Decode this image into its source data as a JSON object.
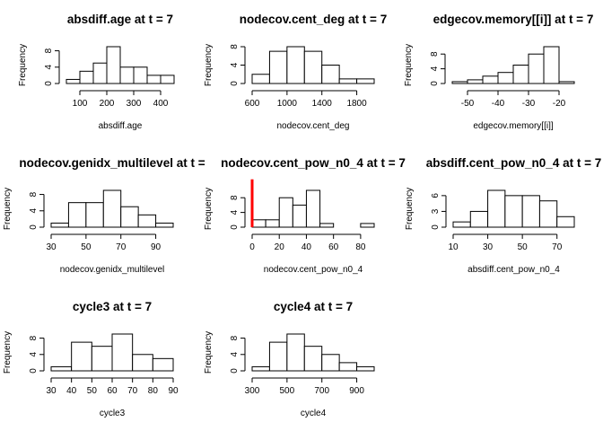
{
  "chart_data": [
    {
      "type": "bar",
      "title": "absdiff.age at t = 7",
      "xlabel": "absdiff.age",
      "ylabel": "Frequency",
      "bins": [
        [
          50,
          100
        ],
        [
          100,
          150
        ],
        [
          150,
          200
        ],
        [
          200,
          250
        ],
        [
          250,
          300
        ],
        [
          300,
          350
        ],
        [
          350,
          400
        ],
        [
          400,
          450
        ]
      ],
      "values": [
        1,
        3,
        5,
        9,
        4,
        4,
        2,
        2
      ],
      "xlim": [
        50,
        450
      ],
      "xticks": [
        100,
        200,
        300,
        400
      ],
      "ylim": [
        0,
        9
      ],
      "yticks": [
        0,
        4,
        8
      ]
    },
    {
      "type": "bar",
      "title": "nodecov.cent_deg at t = 7",
      "xlabel": "nodecov.cent_deg",
      "ylabel": "Frequency",
      "bins": [
        [
          600,
          800
        ],
        [
          800,
          1000
        ],
        [
          1000,
          1200
        ],
        [
          1200,
          1400
        ],
        [
          1400,
          1600
        ],
        [
          1600,
          1800
        ],
        [
          1800,
          2000
        ]
      ],
      "values": [
        2,
        7,
        8,
        7,
        4,
        1,
        1
      ],
      "xlim": [
        600,
        2000
      ],
      "xticks": [
        600,
        1000,
        1400,
        1800
      ],
      "ylim": [
        0,
        8
      ],
      "yticks": [
        0,
        4,
        8
      ]
    },
    {
      "type": "bar",
      "title": "edgecov.memory[[i]] at t = 7",
      "xlabel": "edgecov.memory[[i]]",
      "ylabel": "Frequency",
      "bins": [
        [
          -55,
          -50
        ],
        [
          -50,
          -45
        ],
        [
          -45,
          -40
        ],
        [
          -40,
          -35
        ],
        [
          -35,
          -30
        ],
        [
          -30,
          -25
        ],
        [
          -25,
          -20
        ],
        [
          -20,
          -15
        ]
      ],
      "values": [
        0.5,
        1,
        2,
        3,
        5,
        8,
        10,
        0.5
      ],
      "xlim": [
        -55,
        -15
      ],
      "xticks": [
        -50,
        -40,
        -30,
        -20
      ],
      "ylim": [
        0,
        10
      ],
      "yticks": [
        0,
        4,
        8
      ]
    },
    {
      "type": "bar",
      "title": "nodecov.genidx_multilevel at t =",
      "xlabel": "nodecov.genidx_multilevel",
      "ylabel": "Frequency",
      "bins": [
        [
          30,
          40
        ],
        [
          40,
          50
        ],
        [
          50,
          60
        ],
        [
          60,
          70
        ],
        [
          70,
          80
        ],
        [
          80,
          90
        ],
        [
          90,
          100
        ]
      ],
      "values": [
        1,
        6,
        6,
        9,
        5,
        3,
        1
      ],
      "xlim": [
        30,
        100
      ],
      "xticks": [
        30,
        50,
        70,
        90
      ],
      "ylim": [
        0,
        9
      ],
      "yticks": [
        0,
        4,
        8
      ]
    },
    {
      "type": "bar",
      "title": "nodecov.cent_pow_n0_4 at t = 7",
      "xlabel": "nodecov.cent_pow_n0_4",
      "ylabel": "Frequency",
      "bins": [
        [
          0,
          10
        ],
        [
          10,
          20
        ],
        [
          20,
          30
        ],
        [
          30,
          40
        ],
        [
          40,
          50
        ],
        [
          50,
          60
        ],
        [
          60,
          70
        ],
        [
          70,
          80
        ],
        [
          80,
          90
        ]
      ],
      "values": [
        2,
        2,
        8,
        6,
        10,
        1,
        0,
        0,
        1
      ],
      "xlim": [
        0,
        90
      ],
      "xticks": [
        0,
        20,
        40,
        60,
        80
      ],
      "ylim": [
        0,
        10
      ],
      "yticks": [
        0,
        4,
        8
      ],
      "refline": 0,
      "refline_color": "#ff0000"
    },
    {
      "type": "bar",
      "title": "absdiff.cent_pow_n0_4 at t = 7",
      "xlabel": "absdiff.cent_pow_n0_4",
      "ylabel": "Frequency",
      "bins": [
        [
          10,
          20
        ],
        [
          20,
          30
        ],
        [
          30,
          40
        ],
        [
          40,
          50
        ],
        [
          50,
          60
        ],
        [
          60,
          70
        ],
        [
          70,
          80
        ]
      ],
      "values": [
        1,
        3,
        7,
        6,
        6,
        5,
        2
      ],
      "xlim": [
        10,
        80
      ],
      "xticks": [
        10,
        30,
        50,
        70
      ],
      "ylim": [
        0,
        7
      ],
      "yticks": [
        0,
        3,
        6
      ]
    },
    {
      "type": "bar",
      "title": "cycle3 at t = 7",
      "xlabel": "cycle3",
      "ylabel": "Frequency",
      "bins": [
        [
          30,
          40
        ],
        [
          40,
          50
        ],
        [
          50,
          60
        ],
        [
          60,
          70
        ],
        [
          70,
          80
        ],
        [
          80,
          90
        ]
      ],
      "values": [
        1,
        7,
        6,
        9,
        4,
        3
      ],
      "xlim": [
        30,
        90
      ],
      "xticks": [
        30,
        40,
        50,
        60,
        70,
        80,
        90
      ],
      "ylim": [
        0,
        9
      ],
      "yticks": [
        0,
        4,
        8
      ]
    },
    {
      "type": "bar",
      "title": "cycle4 at t = 7",
      "xlabel": "cycle4",
      "ylabel": "Frequency",
      "bins": [
        [
          300,
          400
        ],
        [
          400,
          500
        ],
        [
          500,
          600
        ],
        [
          600,
          700
        ],
        [
          700,
          800
        ],
        [
          800,
          900
        ],
        [
          900,
          1000
        ]
      ],
      "values": [
        1,
        7,
        9,
        6,
        4,
        2,
        1
      ],
      "xlim": [
        300,
        1000
      ],
      "xticks": [
        300,
        500,
        700,
        900
      ],
      "ylim": [
        0,
        9
      ],
      "yticks": [
        0,
        4,
        8
      ]
    }
  ]
}
